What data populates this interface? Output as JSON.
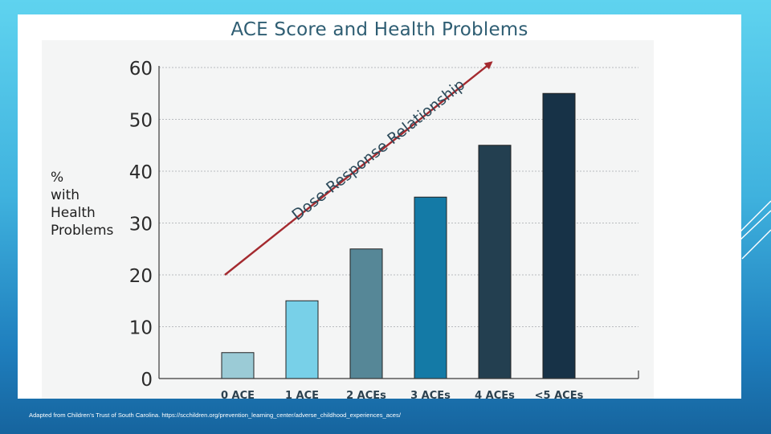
{
  "chart_data": {
    "type": "bar",
    "title": "ACE Score and Health Problems",
    "ylabel": "% with Health Problems",
    "ylabel_lines": [
      "%",
      "with",
      "Health",
      "Problems"
    ],
    "xlabel": "",
    "categories": [
      "0 ACE",
      "1 ACE",
      "2 ACEs",
      "3 ACEs",
      "4 ACEs",
      "<5 ACEs"
    ],
    "values": [
      5,
      15,
      25,
      35,
      45,
      55
    ],
    "ylim": [
      0,
      60
    ],
    "yticks": [
      0,
      10,
      20,
      30,
      40,
      50,
      60
    ],
    "grid": true,
    "legend": "none",
    "bar_colors": [
      "#9bcbd6",
      "#78d0e8",
      "#568797",
      "#147aa6",
      "#233f50",
      "#173247"
    ],
    "annotation": {
      "text": "Dose-Response Relationship",
      "color": "#a42a2f",
      "arrow_from": [
        0.3,
        20
      ],
      "arrow_to": [
        4.45,
        61
      ]
    }
  },
  "caption": "Adapted from Children’s Trust of South Carolina. https://scchildren.org/prevention_learning_center/adverse_childhood_experiences_aces/"
}
